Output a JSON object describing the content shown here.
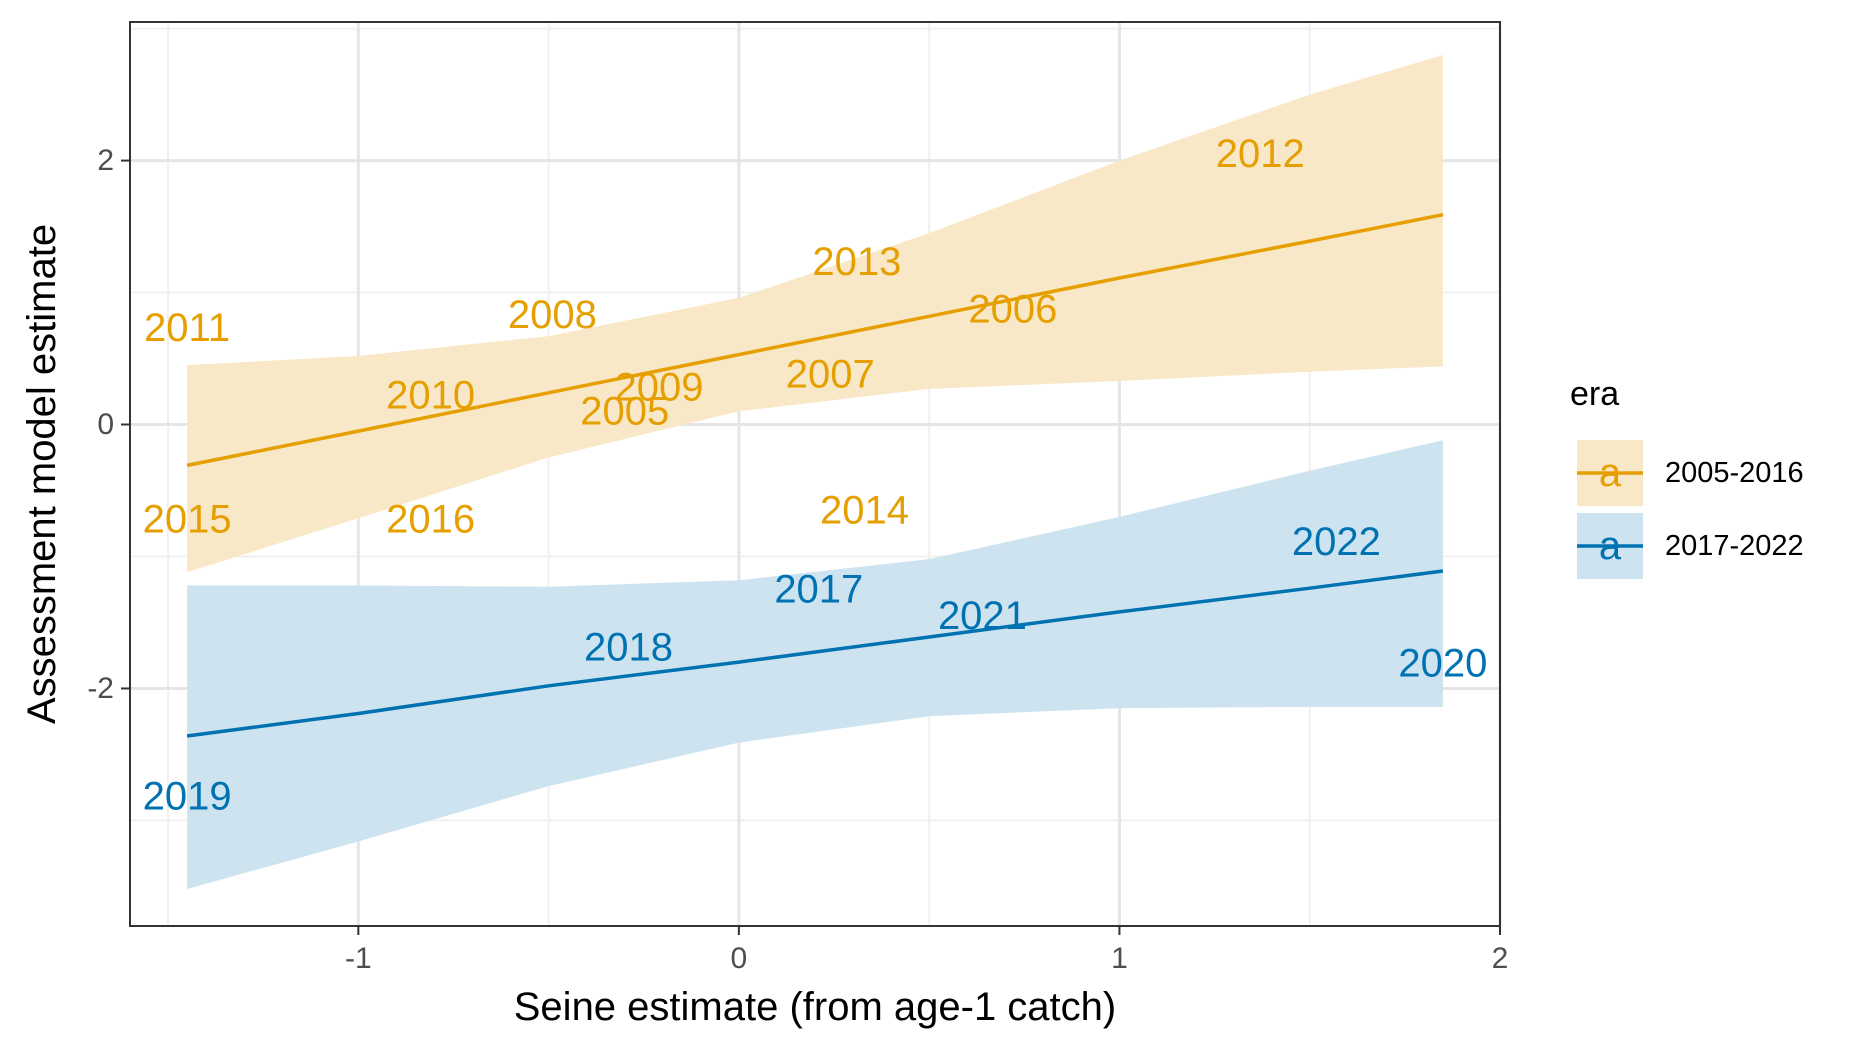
{
  "chart_data": {
    "type": "scatter",
    "title": "",
    "xlabel": "Seine estimate (from age-1 catch)",
    "ylabel": "Assessment model estimate",
    "xlim": [
      -1.6,
      2.0
    ],
    "ylim": [
      -3.8,
      3.05
    ],
    "x_ticks": [
      -1,
      0,
      1,
      2
    ],
    "y_ticks": [
      -2,
      0,
      2
    ],
    "grid": true,
    "legend": {
      "title": "era",
      "position": "right",
      "key_glyph": "a",
      "entries": [
        "2005-2016",
        "2017-2022"
      ]
    },
    "series": [
      {
        "name": "2005-2016",
        "color": "#E69F00",
        "fill": "#F9E8C8",
        "points": [
          {
            "label": "2005",
            "x": -0.3,
            "y": 0.1
          },
          {
            "label": "2006",
            "x": 0.72,
            "y": 0.87
          },
          {
            "label": "2007",
            "x": 0.24,
            "y": 0.38
          },
          {
            "label": "2008",
            "x": -0.49,
            "y": 0.83
          },
          {
            "label": "2009",
            "x": -0.21,
            "y": 0.28
          },
          {
            "label": "2010",
            "x": -0.81,
            "y": 0.22
          },
          {
            "label": "2011",
            "x": -1.45,
            "y": 0.73
          },
          {
            "label": "2012",
            "x": 1.37,
            "y": 2.05
          },
          {
            "label": "2013",
            "x": 0.31,
            "y": 1.23
          },
          {
            "label": "2014",
            "x": 0.33,
            "y": -0.65
          },
          {
            "label": "2015",
            "x": -1.45,
            "y": -0.72
          },
          {
            "label": "2016",
            "x": -0.81,
            "y": -0.72
          }
        ],
        "fit": {
          "x": [
            -1.45,
            -1.0,
            -0.5,
            0.0,
            0.5,
            1.0,
            1.5,
            1.85
          ],
          "y": [
            -0.31,
            -0.05,
            0.24,
            0.53,
            0.82,
            1.11,
            1.39,
            1.59
          ],
          "lower": [
            -1.12,
            -0.71,
            -0.25,
            0.1,
            0.27,
            0.33,
            0.4,
            0.44
          ],
          "upper": [
            0.45,
            0.52,
            0.67,
            0.96,
            1.45,
            2.0,
            2.5,
            2.8
          ]
        }
      },
      {
        "name": "2017-2022",
        "color": "#0072B2",
        "fill": "#CDE4F0",
        "points": [
          {
            "label": "2017",
            "x": 0.21,
            "y": -1.25
          },
          {
            "label": "2018",
            "x": -0.29,
            "y": -1.69
          },
          {
            "label": "2019",
            "x": -1.45,
            "y": -2.82
          },
          {
            "label": "2020",
            "x": 1.85,
            "y": -1.81
          },
          {
            "label": "2021",
            "x": 0.64,
            "y": -1.45
          },
          {
            "label": "2022",
            "x": 1.57,
            "y": -0.89
          }
        ],
        "fit": {
          "x": [
            -1.45,
            -1.0,
            -0.5,
            0.0,
            0.5,
            1.0,
            1.5,
            1.85
          ],
          "y": [
            -2.36,
            -2.19,
            -1.98,
            -1.8,
            -1.61,
            -1.42,
            -1.24,
            -1.11
          ],
          "lower": [
            -3.52,
            -3.16,
            -2.74,
            -2.41,
            -2.21,
            -2.15,
            -2.14,
            -2.14
          ],
          "upper": [
            -1.22,
            -1.22,
            -1.23,
            -1.18,
            -1.02,
            -0.7,
            -0.35,
            -0.12
          ]
        }
      }
    ]
  }
}
